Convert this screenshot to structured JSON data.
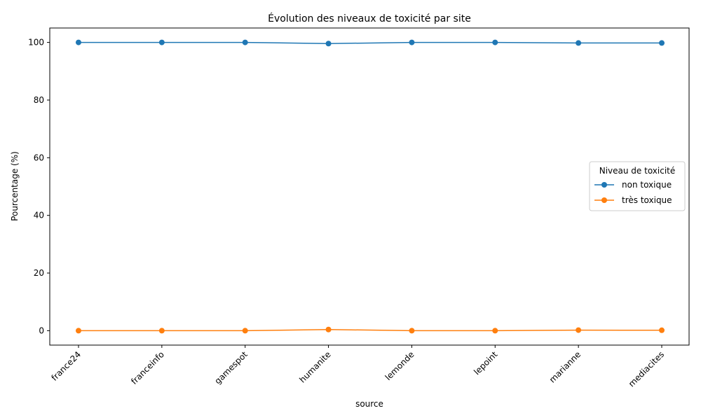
{
  "chart_data": {
    "type": "line",
    "title": "Évolution des niveaux de toxicité par site",
    "xlabel": "source",
    "ylabel": "Pourcentage (%)",
    "categories": [
      "france24",
      "franceinfo",
      "gamespot",
      "humanite",
      "lemonde",
      "lepoint",
      "marianne",
      "mediacites"
    ],
    "series": [
      {
        "name": "non toxique",
        "color": "#1f77b4",
        "values": [
          100,
          100,
          100,
          99.6,
          100,
          100,
          99.8,
          99.8
        ]
      },
      {
        "name": "très toxique",
        "color": "#ff7f0e",
        "values": [
          0,
          0,
          0,
          0.4,
          0,
          0,
          0.2,
          0.15
        ]
      }
    ],
    "ylim": [
      -5,
      105
    ],
    "yticks": [
      0,
      20,
      40,
      60,
      80,
      100
    ],
    "legend": {
      "title": "Niveau de toxicité",
      "placement": "center-right"
    },
    "grid": false
  }
}
